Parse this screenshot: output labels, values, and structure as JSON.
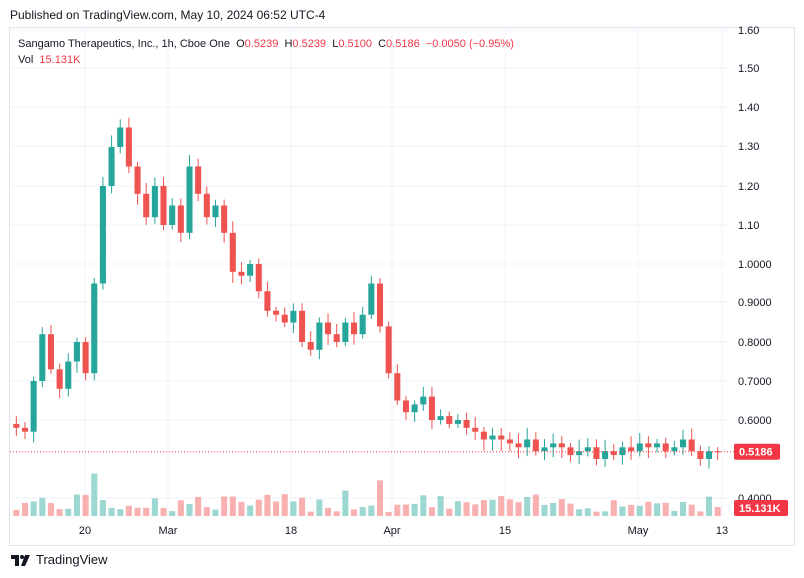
{
  "published": "Published on TradingView.com, May 10, 2024 06:52 UTC-4",
  "legend": {
    "symbol": "Sangamo Therapeutics, Inc., 1h, Cboe One",
    "o_label": "O",
    "o_value": "0.5239",
    "h_label": "H",
    "h_value": "0.5239",
    "l_label": "L",
    "l_value": "0.5100",
    "c_label": "C",
    "c_value": "0.5186",
    "change": "−0.0050 (−0.95%)",
    "vol_label": "Vol",
    "vol_value": "15.131K"
  },
  "price_tag": "0.5186",
  "vol_tag": "15.131K",
  "brand": "TradingView",
  "colors": {
    "up": "#26a69a",
    "down": "#ef5350",
    "last": "#f23645",
    "grid": "#f0f3fa"
  },
  "chart_data": {
    "type": "candlestick",
    "y_ticks": [
      "1.60",
      "1.50",
      "1.40",
      "1.30",
      "1.20",
      "1.10",
      "1.0000",
      "0.9000",
      "0.8000",
      "0.7000",
      "0.6000",
      "0.4000"
    ],
    "x_ticks": [
      "20",
      "Mar",
      "18",
      "Apr",
      "15",
      "May",
      "13"
    ],
    "ylim": [
      0.38,
      1.61
    ],
    "last_price": 0.5186,
    "last_volume": "15.131K",
    "series": [
      {
        "name": "close",
        "values": [
          0.58,
          0.57,
          0.7,
          0.82,
          0.73,
          0.68,
          0.75,
          0.8,
          0.72,
          0.95,
          1.2,
          1.3,
          1.35,
          1.25,
          1.18,
          1.12,
          1.2,
          1.1,
          1.15,
          1.08,
          1.25,
          1.18,
          1.12,
          1.15,
          1.08,
          0.98,
          0.97,
          1.0,
          0.93,
          0.88,
          0.87,
          0.85,
          0.88,
          0.8,
          0.78,
          0.85,
          0.82,
          0.8,
          0.85,
          0.82,
          0.87,
          0.95,
          0.84,
          0.72,
          0.65,
          0.62,
          0.64,
          0.66,
          0.6,
          0.61,
          0.59,
          0.6,
          0.58,
          0.57,
          0.55,
          0.56,
          0.55,
          0.54,
          0.53,
          0.55,
          0.52,
          0.53,
          0.54,
          0.53,
          0.51,
          0.52,
          0.53,
          0.5,
          0.52,
          0.51,
          0.53,
          0.52,
          0.54,
          0.53,
          0.54,
          0.52,
          0.53,
          0.55,
          0.52,
          0.5,
          0.52,
          0.5186
        ]
      }
    ]
  }
}
